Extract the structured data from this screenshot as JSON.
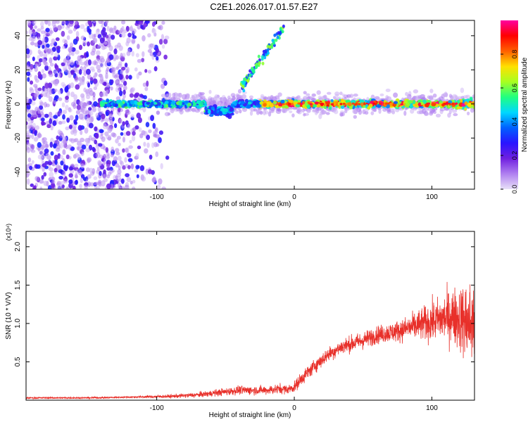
{
  "title": "C2E1.2026.017.01.57.E27",
  "colors": {
    "snr_line": "#e8302a",
    "axis": "#000000",
    "background": "#ffffff"
  },
  "chart_data": [
    {
      "type": "heatmap",
      "title": "C2E1.2026.017.01.57.E27",
      "xlabel": "Height of straight line (km)",
      "ylabel": "Frequency (Hz)",
      "xlim": [
        -195,
        131
      ],
      "ylim": [
        -50,
        49
      ],
      "xticks": [
        -100,
        0,
        100
      ],
      "xtick_labels": [
        "-100",
        "0",
        "100"
      ],
      "yticks": [
        -40,
        -20,
        0,
        20,
        40
      ],
      "ytick_labels": [
        "-40",
        "-20",
        "0",
        "20",
        "40"
      ],
      "colorbar": {
        "label": "Normalized spectral amplitude",
        "range": [
          0,
          1
        ],
        "ticks": [
          0.0,
          0.2,
          0.4,
          0.6,
          0.8
        ],
        "tick_labels": [
          "0.0",
          "0.2",
          "0.4",
          "0.6",
          "0.8"
        ],
        "colormap": [
          "#e8e0f8",
          "#b080f0",
          "#7020e0",
          "#2a14ff",
          "#0060ff",
          "#00d8ff",
          "#20ff80",
          "#a8ff20",
          "#ffe000",
          "#ff6000",
          "#ff0000",
          "#ff00a0"
        ]
      },
      "features": [
        {
          "name": "noise_region",
          "x_range": [
            -195,
            -92
          ],
          "freq_range": [
            -50,
            49
          ],
          "amplitude": 0.25
        },
        {
          "name": "main_band",
          "x_range": [
            -140,
            131
          ],
          "freq_center": 0,
          "freq_halfwidth": 3,
          "amplitude_range": [
            0.3,
            1.0
          ]
        },
        {
          "name": "rising_branch",
          "points": [
            [
              -38,
              10
            ],
            [
              -30,
              20
            ],
            [
              -20,
              30
            ],
            [
              -8,
              45
            ]
          ],
          "amplitude": 0.5
        }
      ]
    },
    {
      "type": "line",
      "xlabel": "Height of straight line (km)",
      "ylabel": "SNR (10 * V/V)",
      "scale_label": "(x10⁴)",
      "xlim": [
        -195,
        131
      ],
      "ylim": [
        0,
        2.2
      ],
      "xticks": [
        -100,
        0,
        100
      ],
      "xtick_labels": [
        "-100",
        "0",
        "100"
      ],
      "yticks": [
        0.5,
        1.0,
        1.5,
        2.0
      ],
      "ytick_labels": [
        "0.5",
        "1.0",
        "1.5",
        "2.0"
      ],
      "series": [
        {
          "name": "SNR",
          "envelope": {
            "x": [
              -195,
              -150,
              -120,
              -90,
              -70,
              -55,
              -40,
              -20,
              -10,
              -5,
              0,
              5,
              15,
              25,
              35,
              50,
              60,
              75,
              85,
              95,
              105,
              115,
              122,
              128,
              131
            ],
            "mean": [
              0.03,
              0.03,
              0.04,
              0.05,
              0.07,
              0.1,
              0.13,
              0.13,
              0.15,
              0.14,
              0.17,
              0.28,
              0.45,
              0.6,
              0.7,
              0.78,
              0.85,
              0.9,
              0.95,
              1.0,
              1.05,
              1.1,
              1.05,
              1.0,
              1.0
            ],
            "noise": [
              0.01,
              0.01,
              0.01,
              0.02,
              0.03,
              0.04,
              0.05,
              0.05,
              0.06,
              0.05,
              0.06,
              0.08,
              0.08,
              0.08,
              0.09,
              0.1,
              0.1,
              0.12,
              0.15,
              0.2,
              0.25,
              0.32,
              0.4,
              0.5,
              0.55
            ]
          }
        }
      ]
    }
  ]
}
